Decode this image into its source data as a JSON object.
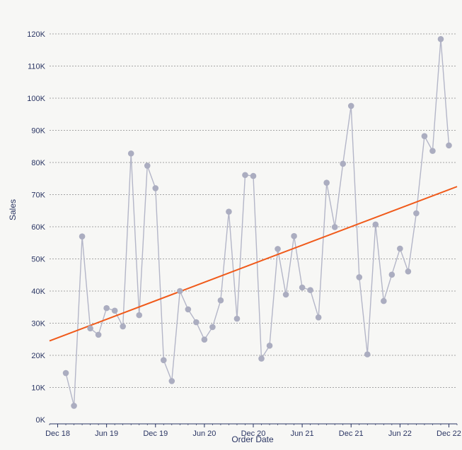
{
  "chart_data": {
    "type": "line",
    "xlabel": "Order Date",
    "ylabel": "Sales",
    "ylim": [
      0,
      120000
    ],
    "y_ticks": [
      {
        "value": 0,
        "label": "0K"
      },
      {
        "value": 10000,
        "label": "10K"
      },
      {
        "value": 20000,
        "label": "20K"
      },
      {
        "value": 30000,
        "label": "30K"
      },
      {
        "value": 40000,
        "label": "40K"
      },
      {
        "value": 50000,
        "label": "50K"
      },
      {
        "value": 60000,
        "label": "60K"
      },
      {
        "value": 70000,
        "label": "70K"
      },
      {
        "value": 80000,
        "label": "80K"
      },
      {
        "value": 90000,
        "label": "90K"
      },
      {
        "value": 100000,
        "label": "100K"
      },
      {
        "value": 110000,
        "label": "110K"
      },
      {
        "value": 120000,
        "label": "120K"
      }
    ],
    "x_ticks": [
      {
        "value": "2018-12",
        "label": "Dec 18"
      },
      {
        "value": "2019-06",
        "label": "Jun 19"
      },
      {
        "value": "2019-12",
        "label": "Dec 19"
      },
      {
        "value": "2020-06",
        "label": "Jun 20"
      },
      {
        "value": "2020-12",
        "label": "Dec 20"
      },
      {
        "value": "2021-06",
        "label": "Jun 21"
      },
      {
        "value": "2021-12",
        "label": "Dec 21"
      },
      {
        "value": "2022-06",
        "label": "Jun 22"
      },
      {
        "value": "2022-12",
        "label": "Dec 22"
      }
    ],
    "x_range": [
      "2018-11",
      "2023-01"
    ],
    "grid": true,
    "series": [
      {
        "type": "line",
        "color": "#b4b6c8",
        "marker_color": "#abadc0",
        "x": [
          "2019-01",
          "2019-02",
          "2019-03",
          "2019-04",
          "2019-05",
          "2019-06",
          "2019-07",
          "2019-08",
          "2019-09",
          "2019-10",
          "2019-11",
          "2019-12",
          "2020-01",
          "2020-02",
          "2020-03",
          "2020-04",
          "2020-05",
          "2020-06",
          "2020-07",
          "2020-08",
          "2020-09",
          "2020-10",
          "2020-11",
          "2020-12",
          "2021-01",
          "2021-02",
          "2021-03",
          "2021-04",
          "2021-05",
          "2021-06",
          "2021-07",
          "2021-08",
          "2021-09",
          "2021-10",
          "2021-11",
          "2021-12",
          "2022-01",
          "2022-02",
          "2022-03",
          "2022-04",
          "2022-05",
          "2022-06",
          "2022-07",
          "2022-08",
          "2022-09",
          "2022-10",
          "2022-11",
          "2022-12"
        ],
        "y": [
          14500,
          4300,
          57000,
          28400,
          26400,
          34700,
          33900,
          29000,
          82800,
          32500,
          79000,
          72000,
          18500,
          12000,
          40000,
          34300,
          30300,
          24900,
          28800,
          37100,
          64700,
          31400,
          76100,
          75800,
          19000,
          23000,
          53100,
          38900,
          57100,
          41100,
          40300,
          31800,
          73700,
          59900,
          79600,
          97600,
          44300,
          20300,
          60700,
          36900,
          45100,
          53200,
          46100,
          64200,
          88200,
          83600,
          118400,
          85300
        ]
      },
      {
        "type": "trend",
        "color": "#f05a1a",
        "x": [
          "2018-11",
          "2023-01"
        ],
        "y": [
          24500,
          72500
        ]
      }
    ]
  }
}
